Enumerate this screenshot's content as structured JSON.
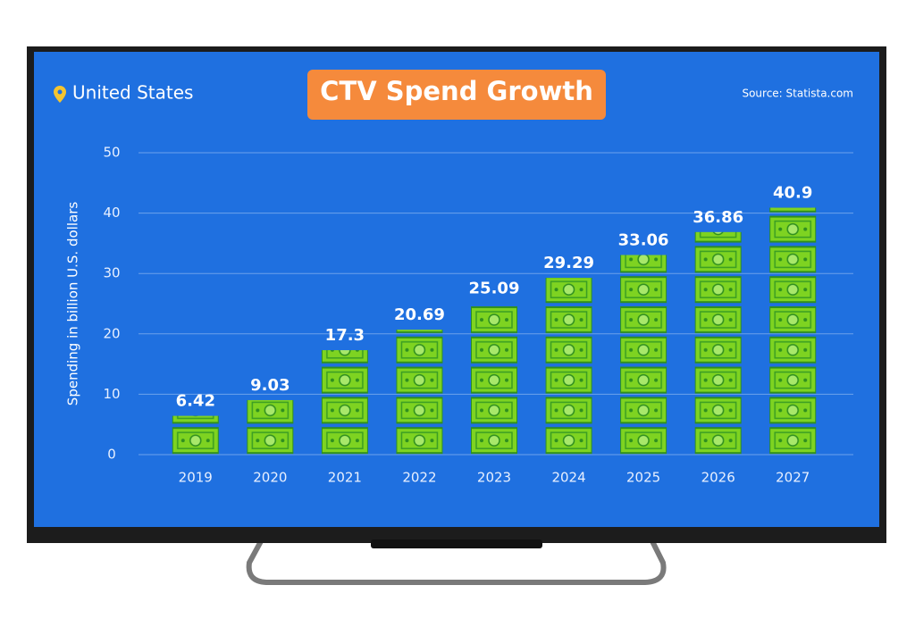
{
  "chart_data": {
    "type": "bar",
    "title": "CTV Spend Growth",
    "subtitle": "United States",
    "source": "Source: Statista.com",
    "y_label": "Spending in billion U.S. dollars",
    "categories": [
      "2019",
      "2020",
      "2021",
      "2022",
      "2023",
      "2024",
      "2025",
      "2026",
      "2027"
    ],
    "values": [
      6.42,
      9.03,
      17.3,
      20.69,
      25.09,
      29.29,
      33.06,
      36.86,
      40.9
    ],
    "color": "#7ed321",
    "ylim": [
      0,
      50
    ],
    "yticks": [
      0,
      10,
      20,
      30,
      40,
      50
    ],
    "grid": true
  }
}
